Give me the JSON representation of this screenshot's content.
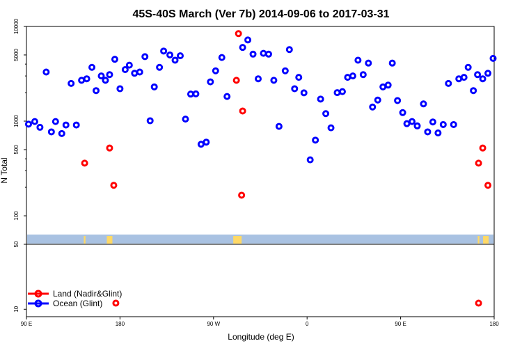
{
  "chart_data": [
    {
      "type": "scatter",
      "title": "45S-40S March (Ver 7b)   2014-09-06 to 2017-03-31",
      "xlabel": "Longitude (deg E)",
      "ylabel": "N Total",
      "yscale": "log",
      "ylim": [
        50,
        10000
      ],
      "xlim": [
        90,
        540
      ],
      "x_ticks": [
        {
          "value": 90,
          "label": "90 E"
        },
        {
          "value": 180,
          "label": "180"
        },
        {
          "value": 270,
          "label": "90 W"
        },
        {
          "value": 360,
          "label": "0"
        },
        {
          "value": 450,
          "label": "90 E"
        },
        {
          "value": 540,
          "label": "180"
        }
      ],
      "y_ticks": [
        {
          "value": 100,
          "label": "100"
        },
        {
          "value": 500,
          "label": "500"
        },
        {
          "value": 1000,
          "label": "1000"
        },
        {
          "value": 5000,
          "label": "5000"
        },
        {
          "value": 10000,
          "label": "10000"
        }
      ],
      "series": [
        {
          "name": "Land (Nadir&Glint)",
          "color": "#ff0000",
          "points": [
            [
              146,
              360
            ],
            [
              170,
              520
            ],
            [
              174,
              210
            ],
            [
              292,
              2700
            ],
            [
              294,
              8400
            ],
            [
              297,
              165
            ],
            [
              298,
              1280
            ],
            [
              525,
              360
            ],
            [
              529,
              520
            ],
            [
              534,
              210
            ]
          ]
        },
        {
          "name": "Ocean (Glint)",
          "color": "#0000ff",
          "points": [
            [
              92,
              930
            ],
            [
              98,
              990
            ],
            [
              103,
              860
            ],
            [
              109,
              3300
            ],
            [
              114,
              770
            ],
            [
              118,
              990
            ],
            [
              124,
              740
            ],
            [
              128,
              910
            ],
            [
              133,
              2500
            ],
            [
              138,
              910
            ],
            [
              143,
              2700
            ],
            [
              148,
              2800
            ],
            [
              153,
              3700
            ],
            [
              157,
              2100
            ],
            [
              162,
              3000
            ],
            [
              166,
              2700
            ],
            [
              170,
              3100
            ],
            [
              175,
              4500
            ],
            [
              180,
              2200
            ],
            [
              185,
              3500
            ],
            [
              189,
              3900
            ],
            [
              194,
              3200
            ],
            [
              199,
              3300
            ],
            [
              204,
              4800
            ],
            [
              209,
              1010
            ],
            [
              213,
              2300
            ],
            [
              218,
              3700
            ],
            [
              222,
              5500
            ],
            [
              228,
              5000
            ],
            [
              233,
              4400
            ],
            [
              238,
              4900
            ],
            [
              243,
              1050
            ],
            [
              248,
              1930
            ],
            [
              253,
              1940
            ],
            [
              258,
              570
            ],
            [
              263,
              600
            ],
            [
              267,
              2600
            ],
            [
              272,
              3400
            ],
            [
              278,
              4700
            ],
            [
              283,
              1820
            ],
            [
              298,
              6000
            ],
            [
              303,
              7200
            ],
            [
              308,
              5100
            ],
            [
              313,
              2800
            ],
            [
              318,
              5200
            ],
            [
              323,
              5100
            ],
            [
              328,
              2700
            ],
            [
              333,
              880
            ],
            [
              339,
              3400
            ],
            [
              343,
              5700
            ],
            [
              348,
              2200
            ],
            [
              352,
              2900
            ],
            [
              357,
              1990
            ],
            [
              363,
              390
            ],
            [
              368,
              630
            ],
            [
              373,
              1710
            ],
            [
              378,
              1200
            ],
            [
              383,
              850
            ],
            [
              389,
              2000
            ],
            [
              394,
              2050
            ],
            [
              399,
              2900
            ],
            [
              404,
              3000
            ],
            [
              409,
              4400
            ],
            [
              414,
              3100
            ],
            [
              419,
              4100
            ],
            [
              423,
              1410
            ],
            [
              428,
              1670
            ],
            [
              433,
              2300
            ],
            [
              438,
              2400
            ],
            [
              442,
              4100
            ],
            [
              447,
              1650
            ],
            [
              452,
              1230
            ],
            [
              456,
              940
            ],
            [
              461,
              990
            ],
            [
              466,
              890
            ],
            [
              472,
              1520
            ],
            [
              476,
              770
            ],
            [
              481,
              980
            ],
            [
              486,
              750
            ],
            [
              491,
              920
            ],
            [
              496,
              2500
            ],
            [
              501,
              920
            ],
            [
              506,
              2800
            ],
            [
              511,
              2900
            ],
            [
              515,
              3700
            ],
            [
              520,
              2100
            ],
            [
              524,
              3100
            ],
            [
              529,
              2800
            ],
            [
              534,
              3200
            ],
            [
              539,
              4600
            ]
          ]
        }
      ],
      "grid": false,
      "legend": "bottom-left"
    },
    {
      "type": "scatter",
      "yscale": "log",
      "ylim": [
        8,
        70
      ],
      "xlim": [
        90,
        540
      ],
      "y_ticks": [
        {
          "value": 10,
          "label": "10"
        },
        {
          "value": 50,
          "label": "50"
        }
      ],
      "series": [
        {
          "name": "Land (Nadir&Glint)",
          "color": "#ff0000",
          "points": [
            [
              176,
              12
            ],
            [
              525,
              12
            ]
          ]
        }
      ]
    }
  ],
  "colors": {
    "land": "#ff0000",
    "ocean": "#0000ff",
    "ocean_band": "#a9c2e2",
    "land_band": "#ffd966"
  }
}
